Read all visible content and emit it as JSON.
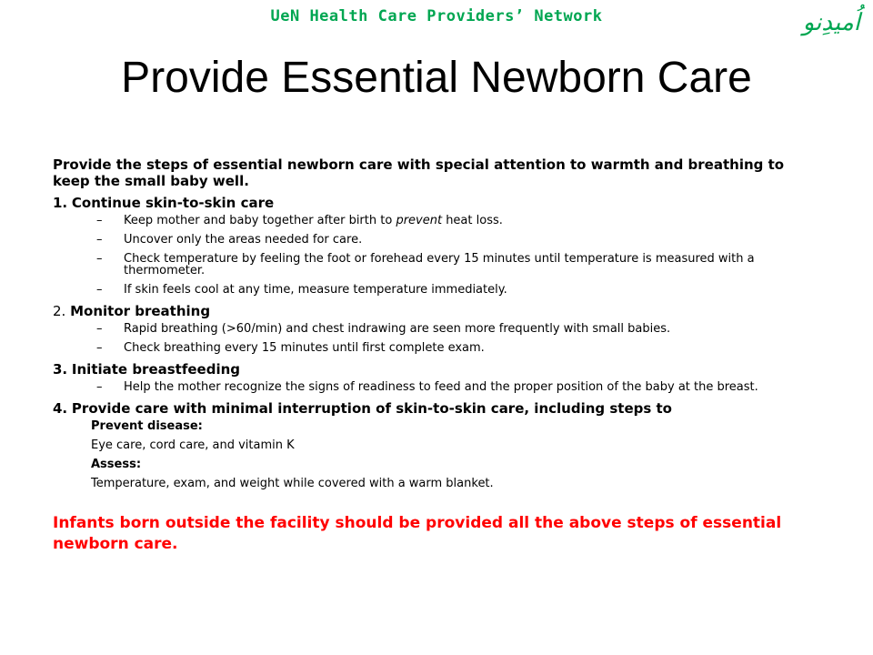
{
  "colors": {
    "network": "#00a651",
    "title": "#000000",
    "note": "#ff0000"
  },
  "header": {
    "network": "UeN Health Care Providers’ Network",
    "logo_text": "اُمیدِنو"
  },
  "title": "Provide Essential Newborn Care",
  "intro": "Provide the steps of essential newborn care with special attention to warmth and breathing to keep the small baby well.",
  "steps": [
    {
      "num": "1.",
      "label": "Continue skin-to-skin care",
      "subs": [
        {
          "before": "Keep mother and baby together after birth to ",
          "em": "prevent",
          "after": " heat loss."
        },
        {
          "text": "Uncover only the areas needed for care."
        },
        {
          "text": "Check temperature by feeling the foot or forehead every 15 minutes until temperature is measured with a thermometer."
        },
        {
          "text": "If skin feels cool at any time, measure temperature immediately."
        }
      ]
    },
    {
      "num": "2.",
      "label": "Monitor breathing",
      "subs": [
        {
          "text": "Rapid breathing (>60/min) and chest indrawing are seen more frequently with small babies."
        },
        {
          "text": "Check breathing every 15 minutes until first complete exam."
        }
      ]
    },
    {
      "num": "3.",
      "label": "Initiate breastfeeding",
      "subs": [
        {
          "text": "Help the mother recognize the signs of readiness to feed and the proper position of the baby at the breast."
        }
      ]
    },
    {
      "num": "4.",
      "label": "Provide care with minimal interruption of skin-to-skin care, including steps to",
      "blocks": {
        "prevent_head": "Prevent disease:",
        "prevent_text": "Eye care, cord care, and vitamin K",
        "assess_head": "Assess:",
        "assess_text": "Temperature, exam, and weight while covered with a warm blanket."
      }
    }
  ],
  "dash": "–",
  "note": "Infants born outside the facility should be provided all the above steps of essential newborn care."
}
